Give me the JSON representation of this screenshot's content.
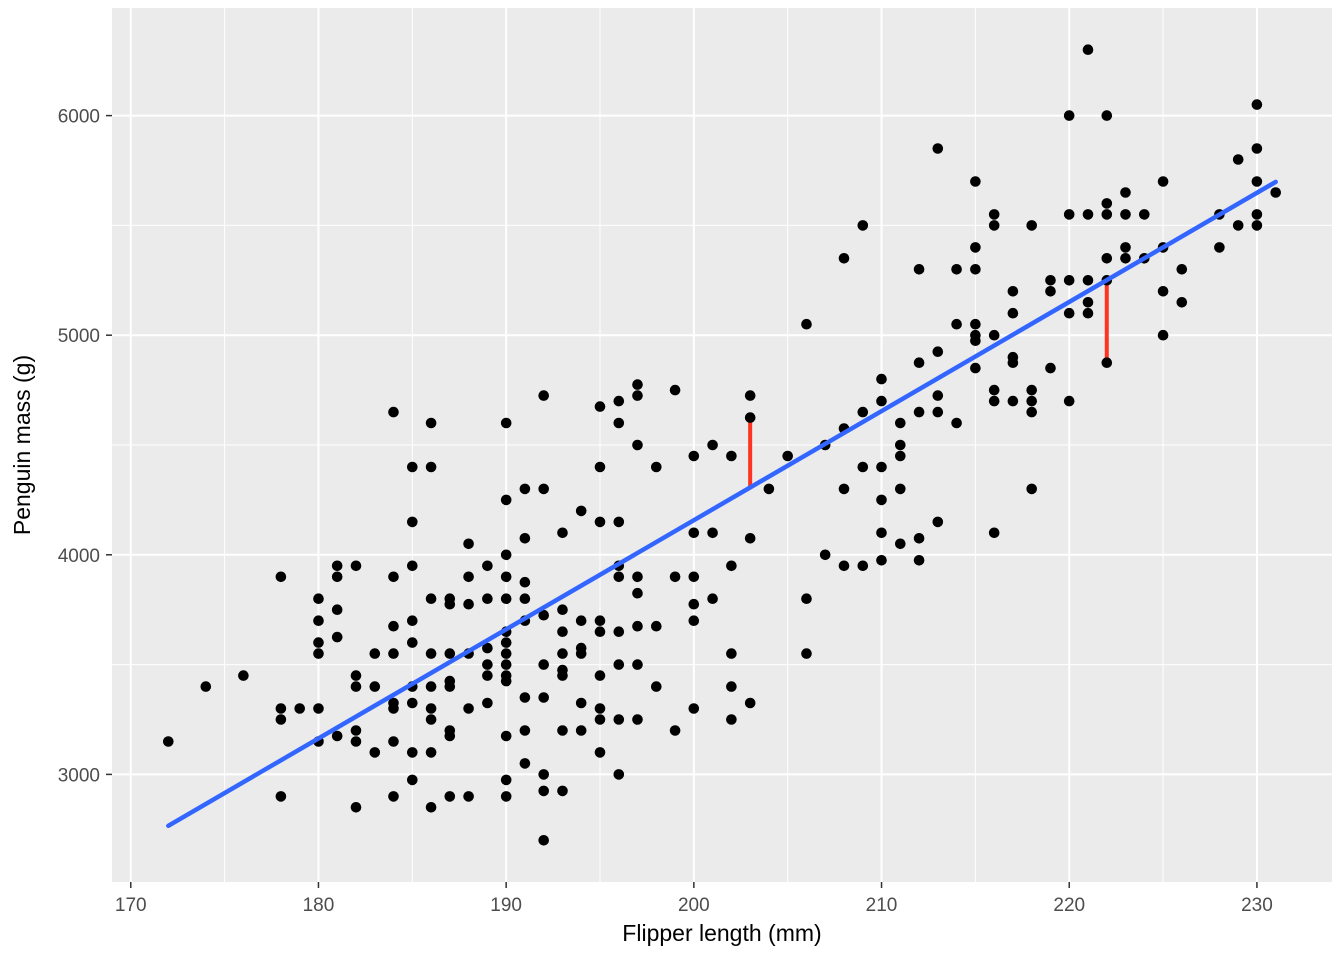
{
  "figure": {
    "background": "#FFFFFF"
  },
  "chart_data": {
    "type": "scatter",
    "title": "",
    "xlabel": "Flipper length (mm)",
    "ylabel": "Penguin mass (g)",
    "x_ticks": [
      170,
      180,
      190,
      200,
      210,
      220,
      230
    ],
    "y_ticks": [
      3000,
      4000,
      5000,
      6000
    ],
    "x_minor_ticks": [
      175,
      185,
      195,
      205,
      215,
      225
    ],
    "y_minor_ticks": [
      2500,
      3500,
      4500,
      5500
    ],
    "xlim": [
      169.0,
      234.0
    ],
    "ylim": [
      2510,
      6490
    ],
    "grid": "on",
    "legend": "none",
    "panel_background": "#EBEBEB",
    "grid_color": "#FFFFFF",
    "tick_label_color": "#4D4D4D",
    "axis_title_color": "#000000",
    "point_color": "#000000",
    "point_radius": 5.3,
    "regression_line": {
      "color": "#3366FF",
      "width": 4.5,
      "x1": 172,
      "y1": 2766,
      "x2": 231,
      "y2": 5698
    },
    "residual_color": "#FF3322",
    "residual_width": 4,
    "residual_segments": [
      {
        "x": 203,
        "y_line": 4306,
        "y_point": 4625
      },
      {
        "x": 222,
        "y_line": 5250,
        "y_point": 4875
      }
    ],
    "points": [
      [
        172,
        3150
      ],
      [
        174,
        3400
      ],
      [
        176,
        3450
      ],
      [
        178,
        2900
      ],
      [
        178,
        3250
      ],
      [
        178,
        3300
      ],
      [
        178,
        3900
      ],
      [
        179,
        3300
      ],
      [
        180,
        3150
      ],
      [
        180,
        3300
      ],
      [
        180,
        3550
      ],
      [
        180,
        3600
      ],
      [
        180,
        3700
      ],
      [
        180,
        3800
      ],
      [
        181,
        3175
      ],
      [
        181,
        3625
      ],
      [
        181,
        3750
      ],
      [
        181,
        3900
      ],
      [
        181,
        3950
      ],
      [
        182,
        2850
      ],
      [
        182,
        3150
      ],
      [
        182,
        3200
      ],
      [
        182,
        3400
      ],
      [
        182,
        3450
      ],
      [
        182,
        3950
      ],
      [
        183,
        3100
      ],
      [
        183,
        3400
      ],
      [
        183,
        3550
      ],
      [
        184,
        2900
      ],
      [
        184,
        3150
      ],
      [
        184,
        3300
      ],
      [
        184,
        3325
      ],
      [
        184,
        3550
      ],
      [
        184,
        3675
      ],
      [
        184,
        3900
      ],
      [
        184,
        4650
      ],
      [
        185,
        2975
      ],
      [
        185,
        3100
      ],
      [
        185,
        3325
      ],
      [
        185,
        3400
      ],
      [
        185,
        3600
      ],
      [
        185,
        3700
      ],
      [
        185,
        3950
      ],
      [
        185,
        4150
      ],
      [
        185,
        4400
      ],
      [
        186,
        2850
      ],
      [
        186,
        3100
      ],
      [
        186,
        3250
      ],
      [
        186,
        3300
      ],
      [
        186,
        3400
      ],
      [
        186,
        3550
      ],
      [
        186,
        3800
      ],
      [
        186,
        4400
      ],
      [
        186,
        4600
      ],
      [
        187,
        2900
      ],
      [
        187,
        3175
      ],
      [
        187,
        3200
      ],
      [
        187,
        3400
      ],
      [
        187,
        3425
      ],
      [
        187,
        3550
      ],
      [
        187,
        3775
      ],
      [
        187,
        3800
      ],
      [
        188,
        2900
      ],
      [
        188,
        3300
      ],
      [
        188,
        3550
      ],
      [
        188,
        3775
      ],
      [
        188,
        3900
      ],
      [
        188,
        4050
      ],
      [
        189,
        3325
      ],
      [
        189,
        3450
      ],
      [
        189,
        3500
      ],
      [
        189,
        3575
      ],
      [
        189,
        3800
      ],
      [
        189,
        3950
      ],
      [
        190,
        2900
      ],
      [
        190,
        2975
      ],
      [
        190,
        3175
      ],
      [
        190,
        3425
      ],
      [
        190,
        3450
      ],
      [
        190,
        3500
      ],
      [
        190,
        3550
      ],
      [
        190,
        3600
      ],
      [
        190,
        3650
      ],
      [
        190,
        3800
      ],
      [
        190,
        3900
      ],
      [
        190,
        4000
      ],
      [
        190,
        4250
      ],
      [
        190,
        4600
      ],
      [
        191,
        3050
      ],
      [
        191,
        3200
      ],
      [
        191,
        3350
      ],
      [
        191,
        3700
      ],
      [
        191,
        3800
      ],
      [
        191,
        3875
      ],
      [
        191,
        4075
      ],
      [
        191,
        4300
      ],
      [
        192,
        2700
      ],
      [
        192,
        2925
      ],
      [
        192,
        3000
      ],
      [
        192,
        3350
      ],
      [
        192,
        3500
      ],
      [
        192,
        3725
      ],
      [
        192,
        4300
      ],
      [
        192,
        4725
      ],
      [
        193,
        2925
      ],
      [
        193,
        3200
      ],
      [
        193,
        3450
      ],
      [
        193,
        3475
      ],
      [
        193,
        3550
      ],
      [
        193,
        3650
      ],
      [
        193,
        3750
      ],
      [
        193,
        4100
      ],
      [
        194,
        3200
      ],
      [
        194,
        3325
      ],
      [
        194,
        3550
      ],
      [
        194,
        3575
      ],
      [
        194,
        3700
      ],
      [
        194,
        4200
      ],
      [
        195,
        3100
      ],
      [
        195,
        3250
      ],
      [
        195,
        3300
      ],
      [
        195,
        3450
      ],
      [
        195,
        3650
      ],
      [
        195,
        3700
      ],
      [
        195,
        4150
      ],
      [
        195,
        4400
      ],
      [
        195,
        4675
      ],
      [
        196,
        3000
      ],
      [
        196,
        3250
      ],
      [
        196,
        3500
      ],
      [
        196,
        3650
      ],
      [
        196,
        3900
      ],
      [
        196,
        3950
      ],
      [
        196,
        4150
      ],
      [
        196,
        4600
      ],
      [
        196,
        4700
      ],
      [
        197,
        3250
      ],
      [
        197,
        3500
      ],
      [
        197,
        3675
      ],
      [
        197,
        3825
      ],
      [
        197,
        3900
      ],
      [
        197,
        4500
      ],
      [
        197,
        4725
      ],
      [
        197,
        4775
      ],
      [
        198,
        3400
      ],
      [
        198,
        3675
      ],
      [
        198,
        4400
      ],
      [
        199,
        3200
      ],
      [
        199,
        3900
      ],
      [
        199,
        4750
      ],
      [
        200,
        3300
      ],
      [
        200,
        3700
      ],
      [
        200,
        3775
      ],
      [
        200,
        3900
      ],
      [
        200,
        4100
      ],
      [
        200,
        4450
      ],
      [
        201,
        3800
      ],
      [
        201,
        4100
      ],
      [
        201,
        4500
      ],
      [
        202,
        3250
      ],
      [
        202,
        3400
      ],
      [
        202,
        3550
      ],
      [
        202,
        3950
      ],
      [
        202,
        4450
      ],
      [
        203,
        3325
      ],
      [
        203,
        4075
      ],
      [
        203,
        4625
      ],
      [
        203,
        4725
      ],
      [
        204,
        4300
      ],
      [
        205,
        4450
      ],
      [
        206,
        3550
      ],
      [
        206,
        3800
      ],
      [
        206,
        5050
      ],
      [
        207,
        4000
      ],
      [
        207,
        4500
      ],
      [
        208,
        3950
      ],
      [
        208,
        4300
      ],
      [
        208,
        4575
      ],
      [
        208,
        5350
      ],
      [
        209,
        3950
      ],
      [
        209,
        4400
      ],
      [
        209,
        4650
      ],
      [
        209,
        5500
      ],
      [
        210,
        3975
      ],
      [
        210,
        4100
      ],
      [
        210,
        4250
      ],
      [
        210,
        4400
      ],
      [
        210,
        4700
      ],
      [
        210,
        4800
      ],
      [
        211,
        4050
      ],
      [
        211,
        4300
      ],
      [
        211,
        4450
      ],
      [
        211,
        4500
      ],
      [
        211,
        4600
      ],
      [
        212,
        3975
      ],
      [
        212,
        4075
      ],
      [
        212,
        4650
      ],
      [
        212,
        4875
      ],
      [
        212,
        5300
      ],
      [
        213,
        4150
      ],
      [
        213,
        4650
      ],
      [
        213,
        4725
      ],
      [
        213,
        4925
      ],
      [
        213,
        5850
      ],
      [
        214,
        4600
      ],
      [
        214,
        5050
      ],
      [
        214,
        5300
      ],
      [
        215,
        4850
      ],
      [
        215,
        4975
      ],
      [
        215,
        5000
      ],
      [
        215,
        5050
      ],
      [
        215,
        5300
      ],
      [
        215,
        5400
      ],
      [
        215,
        5700
      ],
      [
        216,
        4100
      ],
      [
        216,
        4700
      ],
      [
        216,
        4750
      ],
      [
        216,
        5000
      ],
      [
        216,
        5500
      ],
      [
        216,
        5550
      ],
      [
        217,
        4700
      ],
      [
        217,
        4875
      ],
      [
        217,
        4900
      ],
      [
        217,
        5100
      ],
      [
        217,
        5200
      ],
      [
        218,
        4300
      ],
      [
        218,
        4650
      ],
      [
        218,
        4700
      ],
      [
        218,
        4750
      ],
      [
        218,
        5500
      ],
      [
        219,
        4850
      ],
      [
        219,
        5200
      ],
      [
        219,
        5250
      ],
      [
        220,
        4700
      ],
      [
        220,
        5100
      ],
      [
        220,
        5250
      ],
      [
        220,
        5550
      ],
      [
        220,
        6000
      ],
      [
        221,
        5100
      ],
      [
        221,
        5150
      ],
      [
        221,
        5250
      ],
      [
        221,
        5550
      ],
      [
        221,
        6300
      ],
      [
        222,
        4875
      ],
      [
        222,
        5250
      ],
      [
        222,
        5350
      ],
      [
        222,
        5550
      ],
      [
        222,
        5600
      ],
      [
        222,
        6000
      ],
      [
        223,
        5350
      ],
      [
        223,
        5400
      ],
      [
        223,
        5550
      ],
      [
        223,
        5650
      ],
      [
        224,
        5350
      ],
      [
        224,
        5550
      ],
      [
        225,
        5000
      ],
      [
        225,
        5200
      ],
      [
        225,
        5400
      ],
      [
        225,
        5700
      ],
      [
        226,
        5150
      ],
      [
        226,
        5300
      ],
      [
        228,
        5400
      ],
      [
        228,
        5550
      ],
      [
        229,
        5500
      ],
      [
        229,
        5800
      ],
      [
        230,
        5500
      ],
      [
        230,
        5550
      ],
      [
        230,
        5700
      ],
      [
        230,
        5850
      ],
      [
        230,
        6050
      ],
      [
        231,
        5650
      ]
    ]
  }
}
